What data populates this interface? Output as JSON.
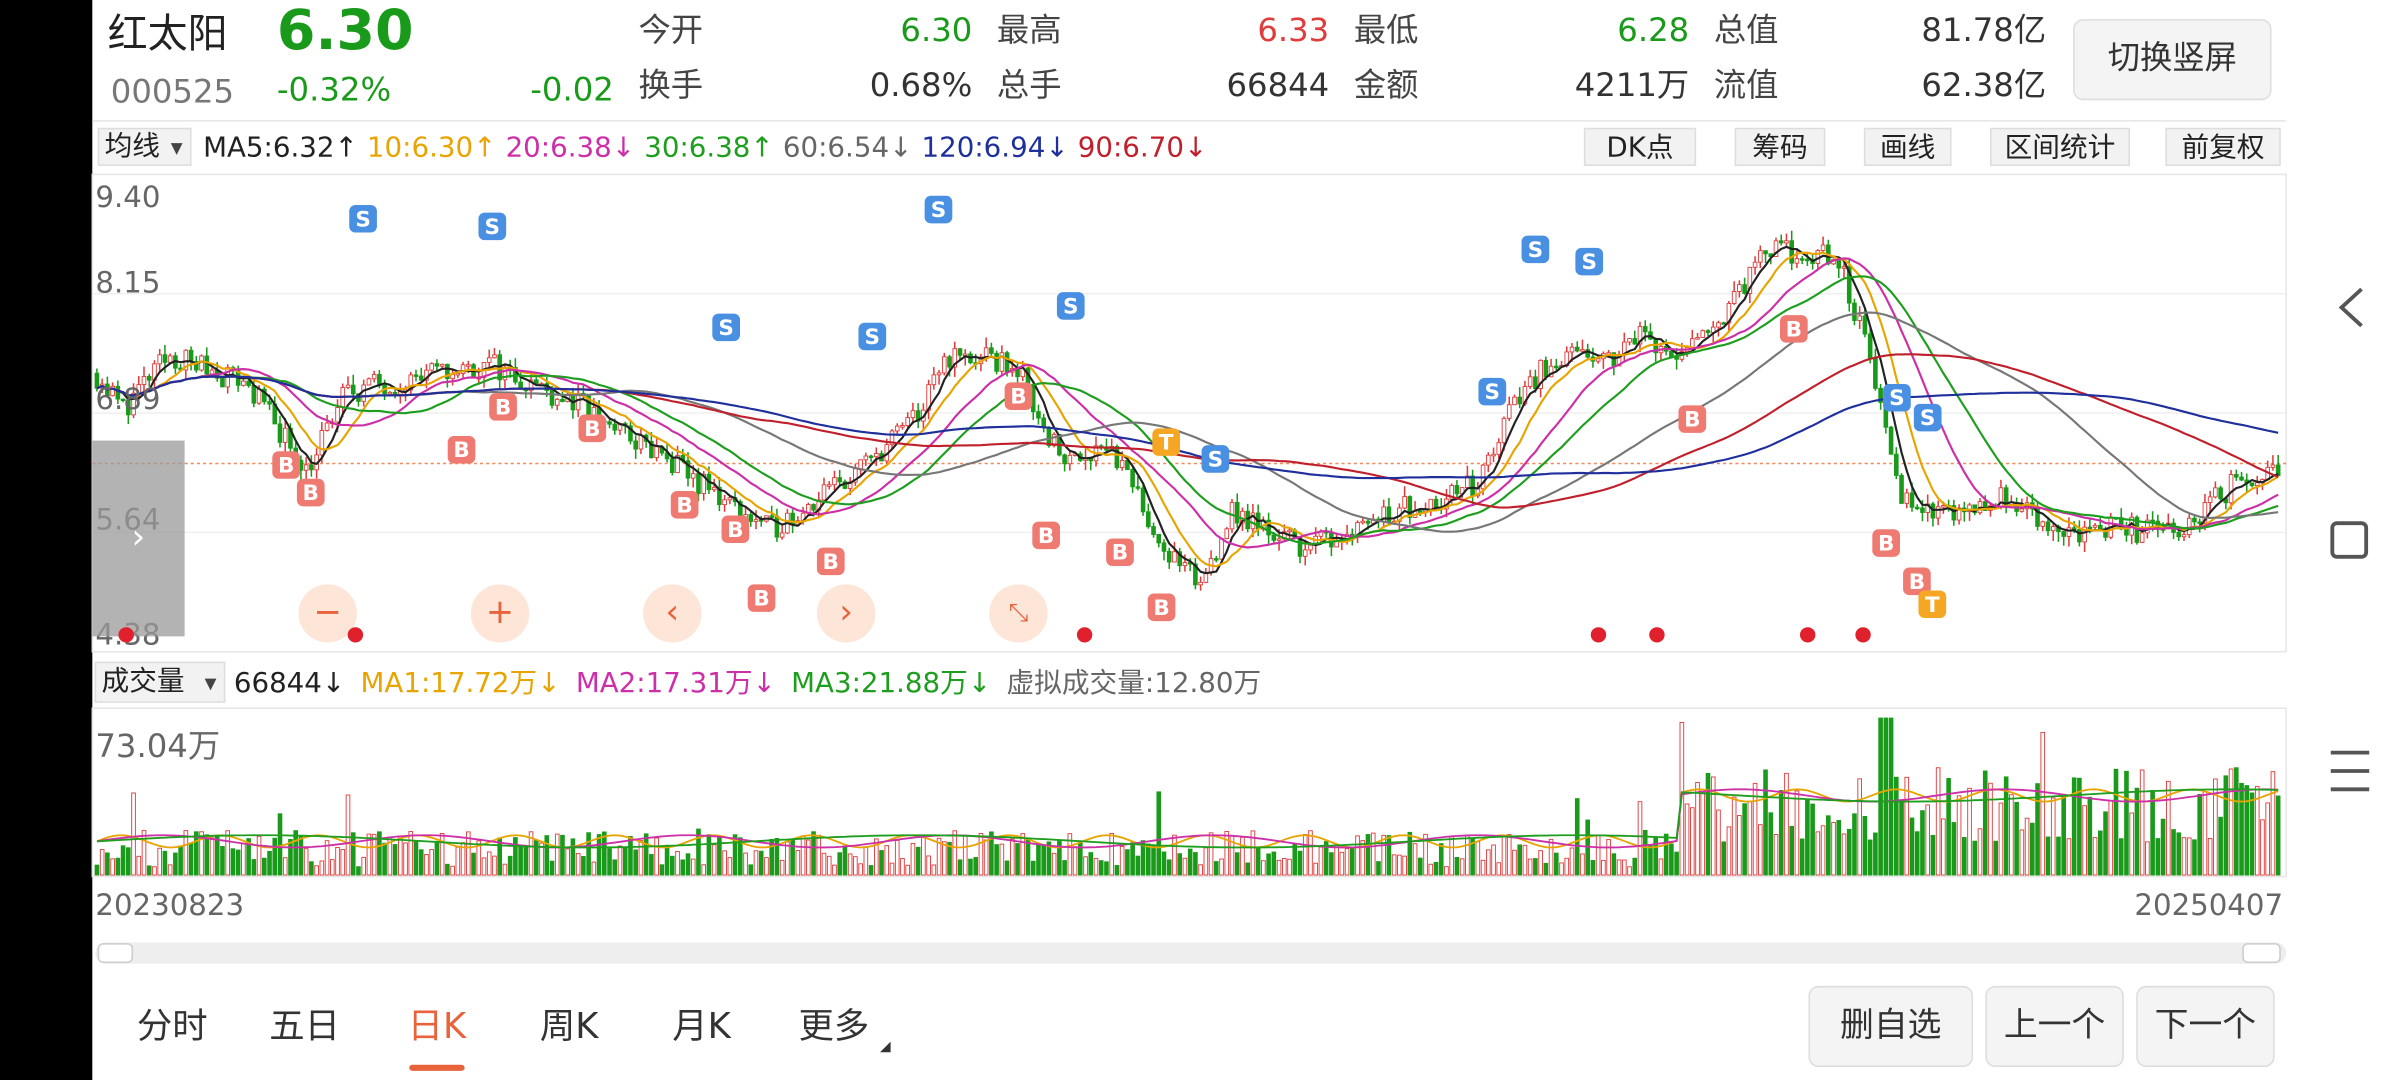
{
  "header": {
    "name": "红太阳",
    "price": "6.30",
    "code": "000525",
    "change_pct": "-0.32%",
    "change": "-0.02",
    "button": "切换竖屏"
  },
  "quotes": [
    {
      "label": "今开",
      "value": "6.30",
      "color": "#1a9a1a"
    },
    {
      "label": "最高",
      "value": "6.33",
      "color": "#e03c3c"
    },
    {
      "label": "最低",
      "value": "6.28",
      "color": "#1a9a1a"
    },
    {
      "label": "总值",
      "value": "81.78亿",
      "color": "#333333"
    },
    {
      "label": "换手",
      "value": "0.68%",
      "color": "#333333"
    },
    {
      "label": "总手",
      "value": "66844",
      "color": "#333333"
    },
    {
      "label": "金额",
      "value": "4211万",
      "color": "#333333"
    },
    {
      "label": "流值",
      "value": "62.38亿",
      "color": "#333333"
    }
  ],
  "ma_bar": {
    "selector": "均线",
    "items": [
      {
        "text": "MA5:6.32↑",
        "color": "#222222"
      },
      {
        "text": "10:6.30↑",
        "color": "#e8a400"
      },
      {
        "text": "20:6.38↓",
        "color": "#cc2fa8"
      },
      {
        "text": "30:6.38↑",
        "color": "#1e9e1e"
      },
      {
        "text": "60:6.54↓",
        "color": "#666666"
      },
      {
        "text": "120:6.94↓",
        "color": "#1f2f9c"
      },
      {
        "text": "90:6.70↓",
        "color": "#c0202c"
      }
    ]
  },
  "tools": [
    "DK点",
    "筹码",
    "画线",
    "区间统计",
    "前复权"
  ],
  "price_axis": [
    "9.40",
    "8.15",
    "6.89",
    "5.64",
    "4.38"
  ],
  "volume_bar": {
    "selector": "成交量",
    "items": [
      {
        "text": "66844↓",
        "color": "#222222"
      },
      {
        "text": "MA1:17.72万↓",
        "color": "#e8a400"
      },
      {
        "text": "MA2:17.31万↓",
        "color": "#cc2fa8"
      },
      {
        "text": "MA3:21.88万↓",
        "color": "#1e9e1e"
      },
      {
        "text": "虚拟成交量:12.80万",
        "color": "#666666"
      }
    ]
  },
  "volume_axis": "73.04万",
  "dates": [
    "20230823",
    "20250407"
  ],
  "signals": [
    "S",
    "S",
    "S",
    "S",
    "S",
    "S",
    "S",
    "S",
    "S",
    "S",
    "S",
    "S",
    "B",
    "B",
    "B",
    "B",
    "B",
    "B",
    "B",
    "B",
    "B",
    "B",
    "B",
    "B",
    "B",
    "B",
    "B",
    "B",
    "B",
    "T",
    "T"
  ],
  "tabs": [
    "分时",
    "五日",
    "日K",
    "周K",
    "月K",
    "更多"
  ],
  "active_tab": 2,
  "actions": [
    "删自选",
    "上一个",
    "下一个"
  ]
}
